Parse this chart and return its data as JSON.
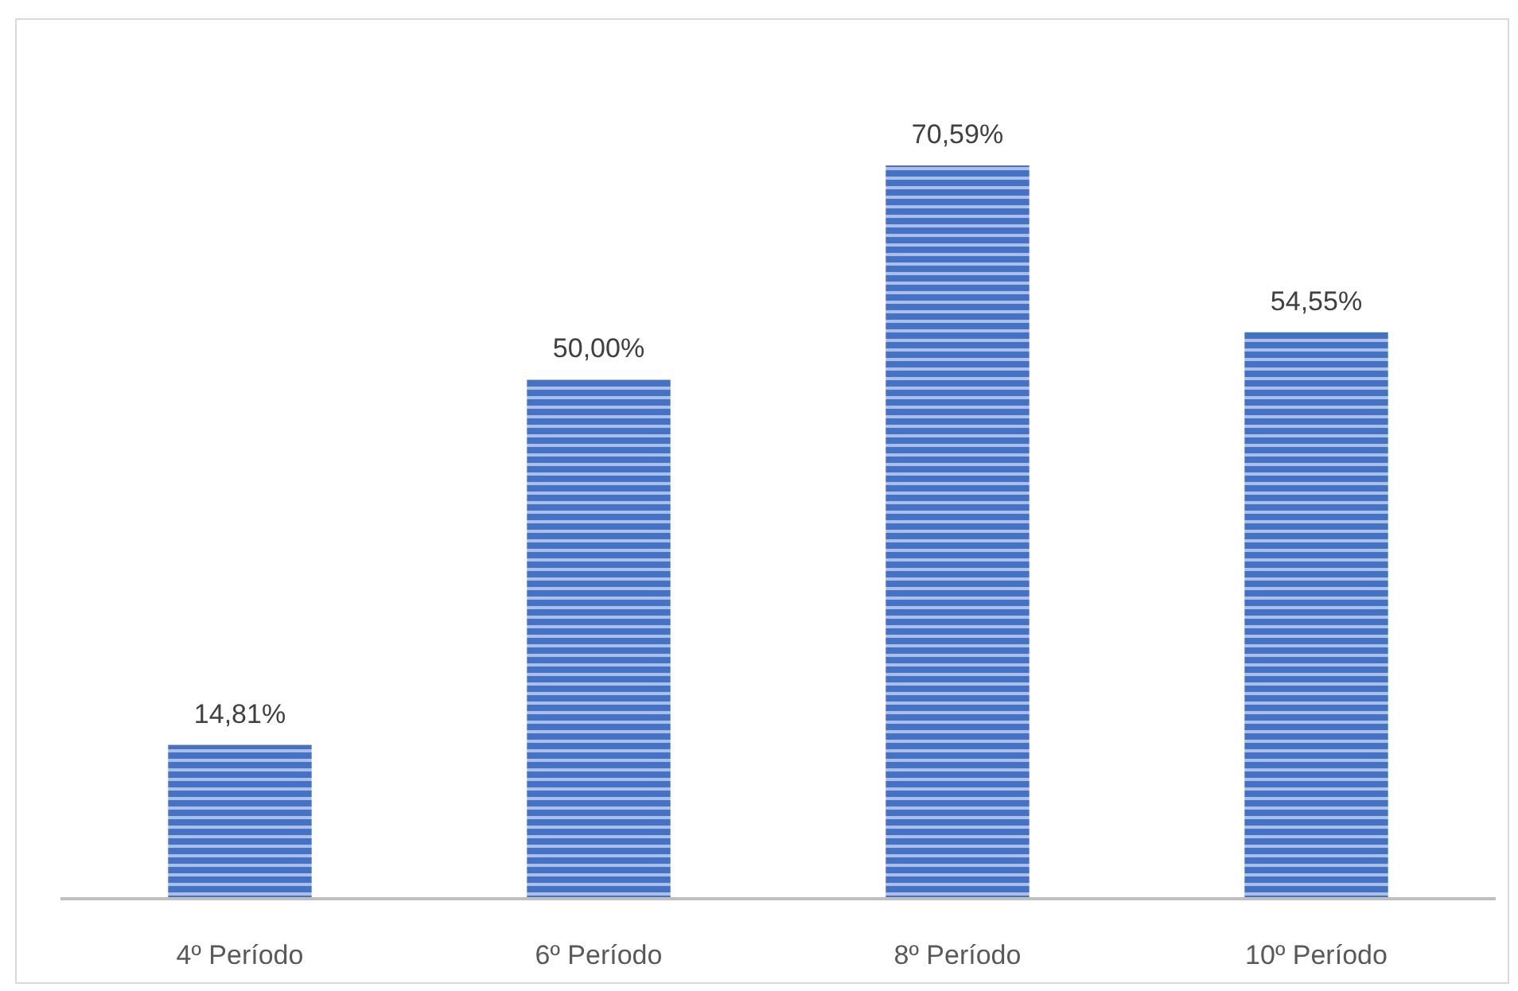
{
  "chart_data": {
    "type": "bar",
    "categories": [
      "4º Período",
      "6º Período",
      "8º Período",
      "10º Período"
    ],
    "values": [
      14.81,
      50.0,
      70.59,
      54.55
    ],
    "value_labels": [
      "14,81%",
      "50,00%",
      "70,59%",
      "54,55%"
    ],
    "color": "#4472c4",
    "tick_labels": "x"
  }
}
